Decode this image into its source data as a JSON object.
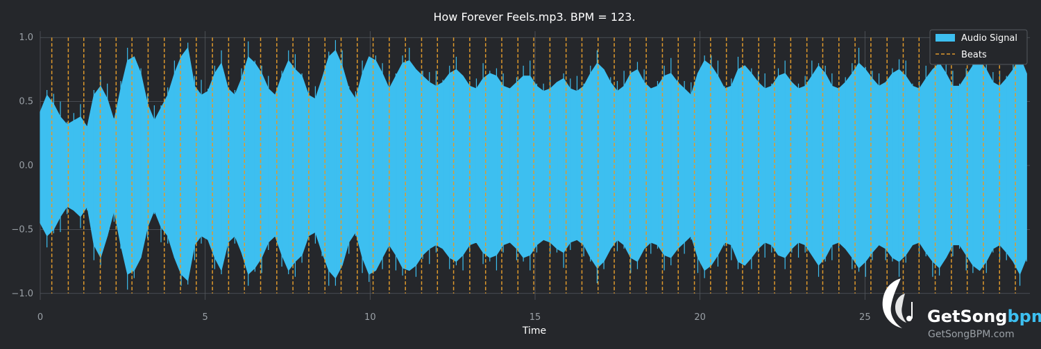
{
  "chart_data": {
    "type": "area",
    "title": "How Forever Feels.mp3. BPM = 123.",
    "xlabel": "Time",
    "ylabel": "",
    "xlim": [
      0,
      30
    ],
    "ylim": [
      -1.05,
      1.05
    ],
    "x_ticks": [
      0,
      5,
      10,
      15,
      20,
      25
    ],
    "x_tick_labels": [
      "0",
      "5",
      "10",
      "15",
      "20",
      "25"
    ],
    "y_ticks": [
      1.0,
      0.5,
      0.0,
      -0.5,
      -1.0
    ],
    "y_tick_labels": [
      "1.0",
      "0.5",
      "0.0",
      "−0.5",
      "−1.0"
    ],
    "grid": true,
    "legend_position": "top-right",
    "series": [
      {
        "name": "Audio Signal",
        "kind": "envelope",
        "color": "#3dbff0",
        "x_start": 0.0,
        "x_end": 29.9,
        "envelope_pos": [
          0.42,
          0.55,
          0.48,
          0.38,
          0.32,
          0.35,
          0.38,
          0.3,
          0.55,
          0.62,
          0.52,
          0.35,
          0.6,
          0.82,
          0.85,
          0.72,
          0.48,
          0.35,
          0.45,
          0.55,
          0.72,
          0.85,
          0.92,
          0.62,
          0.55,
          0.58,
          0.72,
          0.8,
          0.6,
          0.55,
          0.68,
          0.85,
          0.8,
          0.72,
          0.6,
          0.55,
          0.7,
          0.82,
          0.75,
          0.7,
          0.55,
          0.52,
          0.68,
          0.85,
          0.9,
          0.78,
          0.6,
          0.52,
          0.72,
          0.85,
          0.82,
          0.72,
          0.6,
          0.7,
          0.8,
          0.82,
          0.75,
          0.7,
          0.65,
          0.62,
          0.65,
          0.72,
          0.75,
          0.7,
          0.62,
          0.6,
          0.68,
          0.72,
          0.7,
          0.62,
          0.6,
          0.65,
          0.7,
          0.7,
          0.62,
          0.58,
          0.6,
          0.65,
          0.68,
          0.6,
          0.58,
          0.62,
          0.72,
          0.8,
          0.75,
          0.65,
          0.58,
          0.62,
          0.72,
          0.75,
          0.65,
          0.6,
          0.62,
          0.7,
          0.72,
          0.65,
          0.6,
          0.55,
          0.72,
          0.82,
          0.78,
          0.7,
          0.6,
          0.62,
          0.75,
          0.78,
          0.72,
          0.65,
          0.6,
          0.62,
          0.7,
          0.72,
          0.65,
          0.6,
          0.62,
          0.7,
          0.78,
          0.72,
          0.62,
          0.6,
          0.65,
          0.72,
          0.8,
          0.75,
          0.68,
          0.62,
          0.65,
          0.72,
          0.75,
          0.7,
          0.62,
          0.6,
          0.68,
          0.75,
          0.8,
          0.72,
          0.62,
          0.62,
          0.7,
          0.78,
          0.82,
          0.75,
          0.65,
          0.62,
          0.68,
          0.75,
          0.85,
          0.72
        ],
        "envelope_neg": [
          0.45,
          0.55,
          0.5,
          0.4,
          0.32,
          0.35,
          0.4,
          0.32,
          0.62,
          0.72,
          0.55,
          0.35,
          0.62,
          0.85,
          0.82,
          0.72,
          0.48,
          0.35,
          0.48,
          0.55,
          0.72,
          0.85,
          0.9,
          0.62,
          0.55,
          0.58,
          0.72,
          0.82,
          0.6,
          0.55,
          0.68,
          0.85,
          0.8,
          0.72,
          0.6,
          0.55,
          0.7,
          0.82,
          0.75,
          0.7,
          0.55,
          0.52,
          0.68,
          0.82,
          0.88,
          0.78,
          0.6,
          0.52,
          0.72,
          0.85,
          0.82,
          0.72,
          0.62,
          0.7,
          0.8,
          0.82,
          0.78,
          0.7,
          0.65,
          0.62,
          0.65,
          0.72,
          0.75,
          0.7,
          0.62,
          0.6,
          0.68,
          0.72,
          0.7,
          0.62,
          0.6,
          0.65,
          0.72,
          0.7,
          0.62,
          0.58,
          0.6,
          0.65,
          0.68,
          0.6,
          0.58,
          0.62,
          0.72,
          0.8,
          0.75,
          0.65,
          0.58,
          0.62,
          0.72,
          0.75,
          0.65,
          0.6,
          0.62,
          0.7,
          0.72,
          0.65,
          0.6,
          0.55,
          0.72,
          0.82,
          0.78,
          0.7,
          0.6,
          0.62,
          0.75,
          0.78,
          0.72,
          0.65,
          0.6,
          0.62,
          0.7,
          0.72,
          0.65,
          0.6,
          0.62,
          0.7,
          0.78,
          0.72,
          0.62,
          0.6,
          0.65,
          0.72,
          0.8,
          0.75,
          0.68,
          0.62,
          0.65,
          0.72,
          0.75,
          0.7,
          0.62,
          0.6,
          0.68,
          0.75,
          0.8,
          0.72,
          0.62,
          0.62,
          0.7,
          0.78,
          0.82,
          0.75,
          0.65,
          0.62,
          0.68,
          0.75,
          0.85,
          0.72
        ]
      },
      {
        "name": "Beats",
        "kind": "vlines",
        "color": "#e09a2c",
        "x": [
          0.35,
          0.85,
          1.32,
          1.82,
          2.3,
          2.78,
          3.27,
          3.76,
          4.25,
          4.73,
          5.22,
          5.71,
          6.19,
          6.68,
          7.17,
          7.66,
          8.14,
          8.63,
          9.12,
          9.61,
          10.09,
          10.58,
          11.07,
          11.56,
          12.04,
          12.53,
          13.02,
          13.5,
          13.99,
          14.48,
          14.96,
          15.45,
          15.94,
          16.42,
          16.91,
          17.4,
          17.88,
          18.37,
          18.86,
          19.34,
          19.83,
          20.32,
          20.8,
          21.29,
          21.78,
          22.26,
          22.75,
          23.24,
          23.72,
          24.21,
          24.7,
          25.18,
          25.67,
          26.16,
          26.64,
          27.13,
          27.62,
          28.1,
          28.59,
          29.08,
          29.56
        ],
        "y_range": [
          -1.0,
          1.0
        ]
      }
    ],
    "legend": [
      {
        "label": "Audio Signal",
        "swatch": "box",
        "color": "#3dbff0"
      },
      {
        "label": "Beats",
        "swatch": "dashed-line",
        "color": "#e09a2c"
      }
    ]
  },
  "watermark": {
    "brand_main": "GetSong",
    "brand_accent": "bpm",
    "url": "GetSongBPM.com",
    "icon": "bird-music-note-icon"
  },
  "colors": {
    "background": "#25272b",
    "grid": "#55595f",
    "signal": "#3dbff0",
    "beats": "#e09a2c",
    "brand_accent": "#3dbff0"
  }
}
